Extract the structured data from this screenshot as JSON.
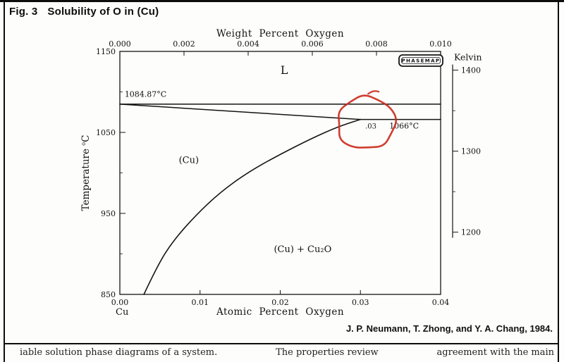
{
  "page": {
    "figure_label": "Fig. 3",
    "figure_title": "Solubility of O in (Cu)",
    "attribution": "J. P. Neumann, T. Zhong, and Y. A. Chang, 1984.",
    "cutoff_fragments": [
      "iable solution phase diagrams of a system.",
      "The properties review",
      "agreement with the main"
    ]
  },
  "chart_data": {
    "type": "line",
    "title": "Solubility of O in (Cu) — Cu-rich corner of the Cu-O phase diagram",
    "axes": {
      "x_bottom": {
        "label": "Atomic Percent Oxygen",
        "range": [
          0,
          0.04
        ],
        "ticks": [
          0,
          0.01,
          0.02,
          0.03,
          0.04
        ],
        "tick_labels": [
          "0.00",
          "0.01",
          "0.02",
          "0.03",
          "0.04"
        ],
        "origin_label": "Cu"
      },
      "x_top": {
        "label": "Weight Percent Oxygen",
        "range": [
          0,
          0.01
        ],
        "ticks": [
          0,
          0.002,
          0.004,
          0.006,
          0.008,
          0.01
        ],
        "tick_labels": [
          "0.000",
          "0.002",
          "0.004",
          "0.006",
          "0.008",
          "0.010"
        ]
      },
      "y_left": {
        "label": "Temperature °C",
        "range": [
          850,
          1150
        ],
        "ticks": [
          1150,
          1050,
          950,
          850
        ],
        "minor_ticks": [
          1100,
          1000,
          900
        ]
      },
      "y_right": {
        "label": "Kelvin",
        "ticks": [
          1400,
          1300,
          1200
        ],
        "minor_ticks": [
          1350,
          1250
        ],
        "unit_offset_from_celsius": 273.15
      }
    },
    "series": [
      {
        "name": "liquidus-upper",
        "points": [
          [
            0,
            1084.87
          ],
          [
            0.04,
            1084.87
          ]
        ]
      },
      {
        "name": "liquidus-lower",
        "points": [
          [
            0,
            1084.87
          ],
          [
            0.03,
            1066
          ]
        ]
      },
      {
        "name": "eutectic-isotherm-1066",
        "points": [
          [
            0.03,
            1066
          ],
          [
            0.04,
            1066
          ]
        ]
      },
      {
        "name": "solvus-cu",
        "points": [
          [
            0.003,
            850
          ],
          [
            0.0048,
            888
          ],
          [
            0.0068,
            918
          ],
          [
            0.0095,
            948
          ],
          [
            0.0125,
            976
          ],
          [
            0.016,
            1001
          ],
          [
            0.0198,
            1022
          ],
          [
            0.024,
            1043
          ],
          [
            0.0272,
            1057
          ],
          [
            0.03,
            1066
          ]
        ]
      }
    ],
    "annotations": [
      {
        "text": "L",
        "x": 0.0205,
        "y": 1122,
        "size": 16,
        "anchor": "middle",
        "name": "liquid-region-label"
      },
      {
        "text": "1084.87°C",
        "x": 0.0006,
        "y": 1094,
        "size": 11,
        "anchor": "start",
        "name": "cu-melting-point-label"
      },
      {
        "text": "(Cu)",
        "x": 0.0086,
        "y": 1012,
        "size": 13,
        "anchor": "middle",
        "name": "cu-solid-region-label"
      },
      {
        "text": "(Cu) + Cu₂O",
        "x": 0.0228,
        "y": 902,
        "size": 13,
        "anchor": "middle",
        "name": "two-phase-region-label"
      },
      {
        "text": ".03",
        "x": 0.0306,
        "y": 1055,
        "size": 10,
        "anchor": "start",
        "name": "eutectic-composition-label"
      },
      {
        "text": "1066°C",
        "x": 0.0336,
        "y": 1055,
        "size": 11,
        "anchor": "start",
        "name": "eutectic-temperature-label"
      }
    ],
    "badge": {
      "text": "PHASEMAP"
    },
    "freehand_mark": {
      "color": "#cb2e20",
      "center_x": 0.0307,
      "center_y": 1062,
      "radius_x": 0.0037,
      "radius_y": 33
    }
  }
}
